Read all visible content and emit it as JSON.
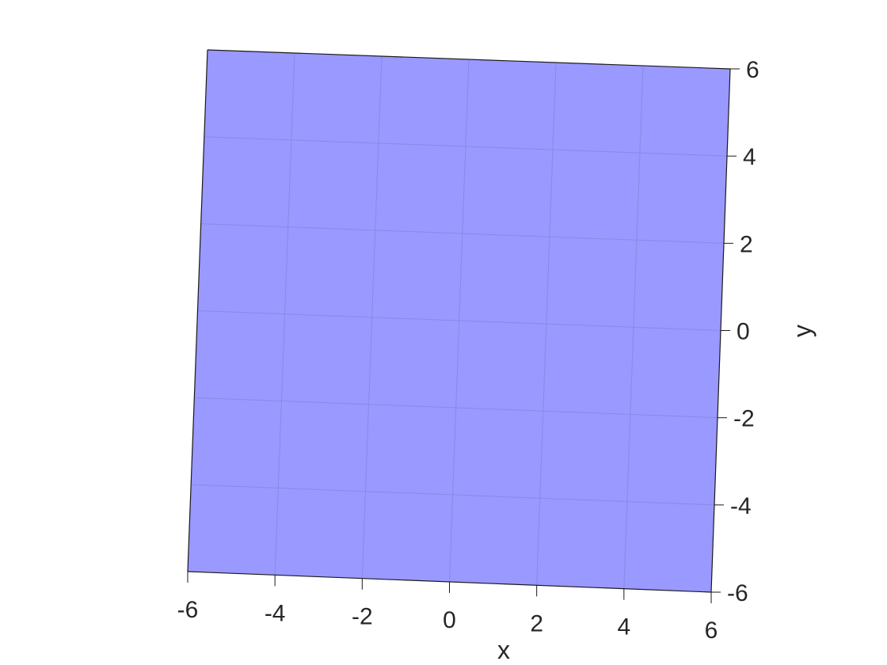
{
  "chart_data": {
    "type": "area",
    "title": "",
    "xlabel": "x",
    "ylabel": "y",
    "xlim": [
      -6,
      6
    ],
    "ylim": [
      -6,
      6
    ],
    "x_ticks": [
      -6,
      -4,
      -2,
      0,
      2,
      4,
      6
    ],
    "y_ticks": [
      -6,
      -4,
      -2,
      0,
      2,
      4,
      6
    ],
    "x_tick_labels": [
      "-6",
      "-4",
      "-2",
      "0",
      "2",
      "4",
      "6"
    ],
    "y_tick_labels": [
      "-6",
      "-4",
      "-2",
      "0",
      "2",
      "4",
      "6"
    ],
    "grid": true,
    "surface": {
      "x": [
        -6,
        6
      ],
      "y": [
        -6,
        6
      ],
      "fill": "#9999ff"
    }
  },
  "colors": {
    "surface": "#9999ff",
    "grid": "#8a8ae6",
    "edge": "#1a1a1a",
    "text": "#262626"
  }
}
